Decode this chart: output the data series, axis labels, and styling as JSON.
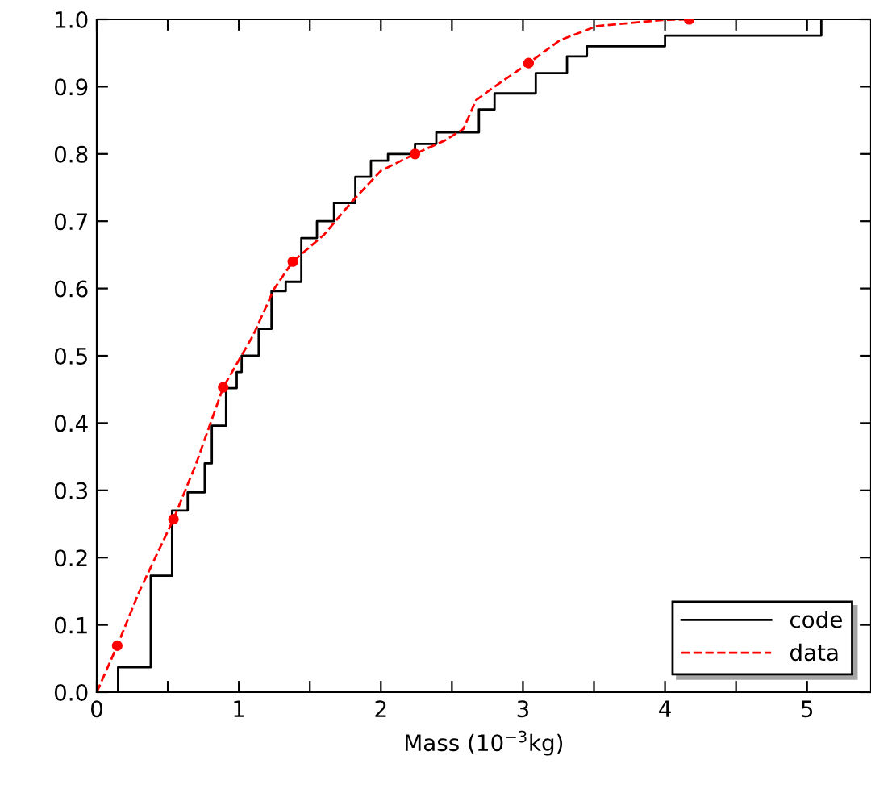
{
  "chart_data": {
    "type": "line",
    "xlabel": "Mass (10$^{−3}$kg)",
    "xlim": [
      0,
      5.45
    ],
    "ylim": [
      0,
      1.0
    ],
    "xticks": [
      0,
      {
        "value": 0.5,
        "label": null
      },
      1,
      {
        "value": 1.5,
        "label": null
      },
      2,
      {
        "value": 2.5,
        "label": null
      },
      3,
      {
        "value": 3.5,
        "label": null
      },
      4,
      {
        "value": 4.5,
        "label": null
      },
      5
    ],
    "yticks": [
      {
        "value": 0,
        "label": "0.0"
      },
      {
        "value": 0.1,
        "label": "0.1"
      },
      {
        "value": 0.2,
        "label": "0.2"
      },
      {
        "value": 0.3,
        "label": "0.3"
      },
      {
        "value": 0.4,
        "label": "0.4"
      },
      {
        "value": 0.5,
        "label": "0.5"
      },
      {
        "value": 0.6,
        "label": "0.6"
      },
      {
        "value": 0.7,
        "label": "0.7"
      },
      {
        "value": 0.8,
        "label": "0.8"
      },
      {
        "value": 0.9,
        "label": "0.9"
      },
      {
        "value": 1.0,
        "label": "1.0"
      }
    ],
    "grid": false,
    "legend": "bottom right",
    "series": [
      {
        "name": "code",
        "type": "step",
        "color": "#000000",
        "line_style": "solid",
        "marker": "none",
        "x": [
          0,
          0.15,
          0.38,
          0.53,
          0.64,
          0.76,
          0.81,
          0.91,
          0.985,
          1.02,
          1.14,
          1.23,
          1.33,
          1.44,
          1.55,
          1.67,
          1.82,
          1.93,
          2.05,
          2.24,
          2.39,
          2.69,
          2.8,
          3.09,
          3.31,
          3.45,
          4.0,
          5.1
        ],
        "values": [
          0,
          0.037,
          0.173,
          0.27,
          0.297,
          0.34,
          0.396,
          0.452,
          0.476,
          0.5,
          0.54,
          0.596,
          0.61,
          0.675,
          0.7,
          0.727,
          0.766,
          0.79,
          0.8,
          0.815,
          0.832,
          0.866,
          0.89,
          0.92,
          0.945,
          0.96,
          0.976,
          1.0
        ]
      },
      {
        "name": "data",
        "color": "#ff0000",
        "line_style": "dashed",
        "marker": "none",
        "x": [
          0,
          0.144,
          0.3,
          0.54,
          0.7,
          0.89,
          1.1,
          1.25,
          1.38,
          1.6,
          1.8,
          2.0,
          2.24,
          2.45,
          2.58,
          2.67,
          2.8,
          3.04,
          3.26,
          3.52,
          3.98,
          4.17
        ],
        "values": [
          0,
          0.069,
          0.15,
          0.257,
          0.34,
          0.453,
          0.53,
          0.6,
          0.64,
          0.68,
          0.73,
          0.775,
          0.8,
          0.82,
          0.837,
          0.88,
          0.9,
          0.935,
          0.969,
          0.99,
          0.999,
          1.0
        ]
      },
      {
        "type": "scatter",
        "color": "#ff0000",
        "marker": "circle",
        "x": [
          0.144,
          0.54,
          0.89,
          1.38,
          2.24,
          3.04,
          4.17
        ],
        "values": [
          0.069,
          0.257,
          0.453,
          0.64,
          0.8,
          0.935,
          1.0
        ]
      }
    ]
  }
}
